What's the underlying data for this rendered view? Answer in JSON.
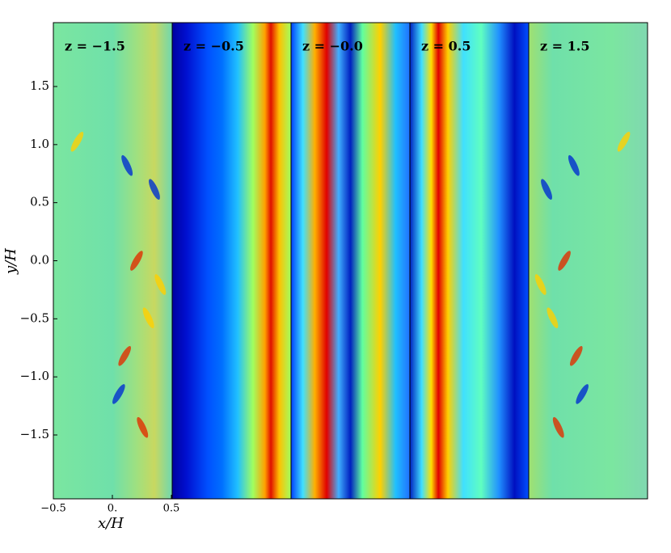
{
  "chart_data": [
    {
      "type": "heatmap",
      "title": "z = −1.5",
      "xlabel": "x/H",
      "ylabel": "y/H",
      "xlim": [
        -0.5,
        0.5
      ],
      "xticks": [
        {
          "value": -0.5,
          "label": "−0.5"
        },
        {
          "value": 0,
          "label": "0."
        },
        0.5
      ],
      "ylim": [
        -2.05,
        2.05
      ],
      "yticks": [
        {
          "value": -1.5,
          "label": "−1.5"
        },
        {
          "value": -1,
          "label": "−1.0"
        },
        {
          "value": -0.5,
          "label": "−0.5"
        },
        {
          "value": 0,
          "label": "0.0"
        },
        0.5,
        {
          "value": 1,
          "label": "1.0"
        },
        1.5
      ]
    },
    {
      "type": "heatmap",
      "title": "z = −0.5"
    },
    {
      "type": "heatmap",
      "title": "z = −0.0"
    },
    {
      "type": "heatmap",
      "title": "z = 0.5"
    },
    {
      "type": "heatmap",
      "title": "z = 1.5"
    }
  ]
}
